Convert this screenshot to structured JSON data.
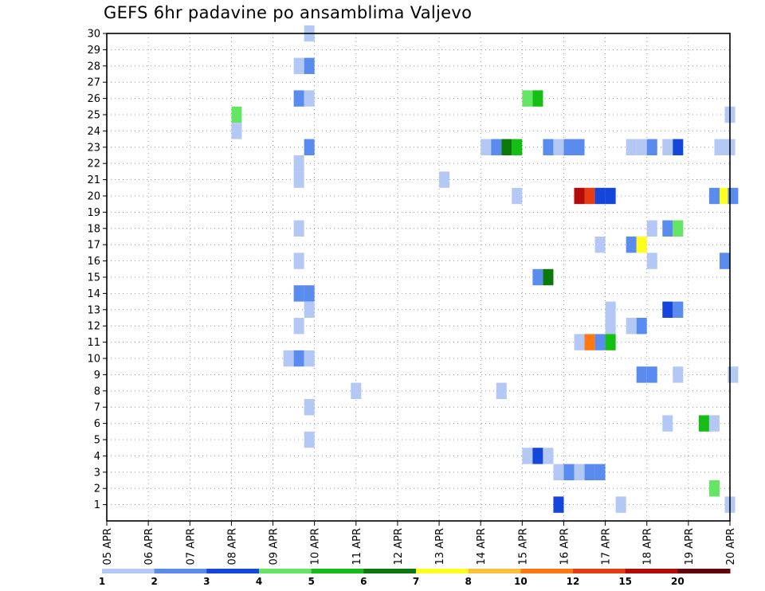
{
  "chart_data": {
    "type": "heatmap",
    "title": "GEFS 6hr padavine po ansamblima Valjevo",
    "xlabel": "",
    "ylabel": "",
    "x_range": [
      0,
      60
    ],
    "y_range": [
      0,
      30
    ],
    "x_ticks": [
      {
        "x": 0,
        "label": "05 APR"
      },
      {
        "x": 4,
        "label": "06 APR"
      },
      {
        "x": 8,
        "label": "07 APR"
      },
      {
        "x": 12,
        "label": "08 APR"
      },
      {
        "x": 16,
        "label": "09 APR"
      },
      {
        "x": 20,
        "label": "10 APR"
      },
      {
        "x": 24,
        "label": "11 APR"
      },
      {
        "x": 28,
        "label": "12 APR"
      },
      {
        "x": 32,
        "label": "13 APR"
      },
      {
        "x": 36,
        "label": "14 APR"
      },
      {
        "x": 40,
        "label": "15 APR"
      },
      {
        "x": 44,
        "label": "16 APR"
      },
      {
        "x": 48,
        "label": "17 APR"
      },
      {
        "x": 52,
        "label": "18 APR"
      },
      {
        "x": 56,
        "label": "19 APR"
      },
      {
        "x": 60,
        "label": "20 APR"
      }
    ],
    "y_ticks": [
      1,
      2,
      3,
      4,
      5,
      6,
      7,
      8,
      9,
      10,
      11,
      12,
      13,
      14,
      15,
      16,
      17,
      18,
      19,
      20,
      21,
      22,
      23,
      24,
      25,
      26,
      27,
      28,
      29,
      30
    ],
    "grid": true,
    "colorbar": {
      "levels": [
        "1",
        "2",
        "3",
        "4",
        "5",
        "6",
        "7",
        "8",
        "10",
        "12",
        "15",
        "20"
      ],
      "colors": [
        "#b4c8f5",
        "#5a8cf0",
        "#1446dc",
        "#64e664",
        "#14be14",
        "#0a780a",
        "#ffff1e",
        "#ffbe3c",
        "#ff7814",
        "#e63c14",
        "#b40a0a",
        "#64000a"
      ]
    },
    "cells": [
      {
        "x": 19,
        "y": 30,
        "c": 0
      },
      {
        "x": 18,
        "y": 28,
        "c": 0
      },
      {
        "x": 19,
        "y": 28,
        "c": 1
      },
      {
        "x": 18,
        "y": 26,
        "c": 1
      },
      {
        "x": 19,
        "y": 26,
        "c": 0
      },
      {
        "x": 40,
        "y": 26,
        "c": 3
      },
      {
        "x": 41,
        "y": 26,
        "c": 4
      },
      {
        "x": 12,
        "y": 25,
        "c": 3
      },
      {
        "x": 12,
        "y": 24,
        "c": 0
      },
      {
        "x": 59.5,
        "y": 25,
        "c": 0
      },
      {
        "x": 19,
        "y": 23,
        "c": 1
      },
      {
        "x": 36,
        "y": 23,
        "c": 0
      },
      {
        "x": 37,
        "y": 23,
        "c": 1
      },
      {
        "x": 38,
        "y": 23,
        "c": 5
      },
      {
        "x": 39,
        "y": 23,
        "c": 4
      },
      {
        "x": 42,
        "y": 23,
        "c": 1
      },
      {
        "x": 43,
        "y": 23,
        "c": 0
      },
      {
        "x": 44,
        "y": 23,
        "c": 1
      },
      {
        "x": 45,
        "y": 23,
        "c": 1
      },
      {
        "x": 50,
        "y": 23,
        "c": 0
      },
      {
        "x": 51,
        "y": 23,
        "c": 0
      },
      {
        "x": 52,
        "y": 23,
        "c": 1
      },
      {
        "x": 53.5,
        "y": 23,
        "c": 0
      },
      {
        "x": 54.5,
        "y": 23,
        "c": 2
      },
      {
        "x": 58.5,
        "y": 23,
        "c": 0
      },
      {
        "x": 59.5,
        "y": 23,
        "c": 0
      },
      {
        "x": 18,
        "y": 22,
        "c": 0
      },
      {
        "x": 18,
        "y": 21,
        "c": 0
      },
      {
        "x": 32,
        "y": 21,
        "c": 0
      },
      {
        "x": 39,
        "y": 20,
        "c": 0
      },
      {
        "x": 45,
        "y": 20,
        "c": 10
      },
      {
        "x": 46,
        "y": 20,
        "c": 9
      },
      {
        "x": 47,
        "y": 20,
        "c": 2
      },
      {
        "x": 48,
        "y": 20,
        "c": 2
      },
      {
        "x": 58,
        "y": 20,
        "c": 1
      },
      {
        "x": 59,
        "y": 20,
        "c": 6
      },
      {
        "x": 59.8,
        "y": 20,
        "c": 1
      },
      {
        "x": 18,
        "y": 18,
        "c": 0
      },
      {
        "x": 52,
        "y": 18,
        "c": 0
      },
      {
        "x": 53.5,
        "y": 18,
        "c": 1
      },
      {
        "x": 54.5,
        "y": 18,
        "c": 3
      },
      {
        "x": 47,
        "y": 17,
        "c": 0
      },
      {
        "x": 50,
        "y": 17,
        "c": 1
      },
      {
        "x": 51,
        "y": 17,
        "c": 6
      },
      {
        "x": 18,
        "y": 16,
        "c": 0
      },
      {
        "x": 52,
        "y": 16,
        "c": 0
      },
      {
        "x": 59,
        "y": 16,
        "c": 1
      },
      {
        "x": 41,
        "y": 15,
        "c": 1
      },
      {
        "x": 42,
        "y": 15,
        "c": 5
      },
      {
        "x": 18,
        "y": 14,
        "c": 1
      },
      {
        "x": 19,
        "y": 14,
        "c": 1
      },
      {
        "x": 19,
        "y": 13,
        "c": 0
      },
      {
        "x": 48,
        "y": 13,
        "c": 0
      },
      {
        "x": 53.5,
        "y": 13,
        "c": 2
      },
      {
        "x": 54.5,
        "y": 13,
        "c": 1
      },
      {
        "x": 48,
        "y": 12,
        "c": 0
      },
      {
        "x": 18,
        "y": 12,
        "c": 0
      },
      {
        "x": 50,
        "y": 12,
        "c": 0
      },
      {
        "x": 51,
        "y": 12,
        "c": 1
      },
      {
        "x": 45,
        "y": 11,
        "c": 0
      },
      {
        "x": 46,
        "y": 11,
        "c": 8
      },
      {
        "x": 47,
        "y": 11,
        "c": 1
      },
      {
        "x": 48,
        "y": 11,
        "c": 4
      },
      {
        "x": 17,
        "y": 10,
        "c": 0
      },
      {
        "x": 18,
        "y": 10,
        "c": 1
      },
      {
        "x": 19,
        "y": 10,
        "c": 0
      },
      {
        "x": 51,
        "y": 9,
        "c": 1
      },
      {
        "x": 52,
        "y": 9,
        "c": 1
      },
      {
        "x": 54.5,
        "y": 9,
        "c": 0
      },
      {
        "x": 59.8,
        "y": 9,
        "c": 0
      },
      {
        "x": 23.5,
        "y": 8,
        "c": 0
      },
      {
        "x": 37.5,
        "y": 8,
        "c": 0
      },
      {
        "x": 19,
        "y": 7,
        "c": 0
      },
      {
        "x": 53.5,
        "y": 6,
        "c": 0
      },
      {
        "x": 57,
        "y": 6,
        "c": 4
      },
      {
        "x": 58,
        "y": 6,
        "c": 0
      },
      {
        "x": 19,
        "y": 5,
        "c": 0
      },
      {
        "x": 40,
        "y": 4,
        "c": 0
      },
      {
        "x": 41,
        "y": 4,
        "c": 2
      },
      {
        "x": 42,
        "y": 4,
        "c": 0
      },
      {
        "x": 43,
        "y": 3,
        "c": 0
      },
      {
        "x": 44,
        "y": 3,
        "c": 1
      },
      {
        "x": 45,
        "y": 3,
        "c": 0
      },
      {
        "x": 46,
        "y": 3,
        "c": 1
      },
      {
        "x": 47,
        "y": 3,
        "c": 1
      },
      {
        "x": 58,
        "y": 2,
        "c": 3
      },
      {
        "x": 43,
        "y": 1,
        "c": 2
      },
      {
        "x": 49,
        "y": 1,
        "c": 0
      },
      {
        "x": 59.5,
        "y": 1,
        "c": 0
      }
    ]
  }
}
